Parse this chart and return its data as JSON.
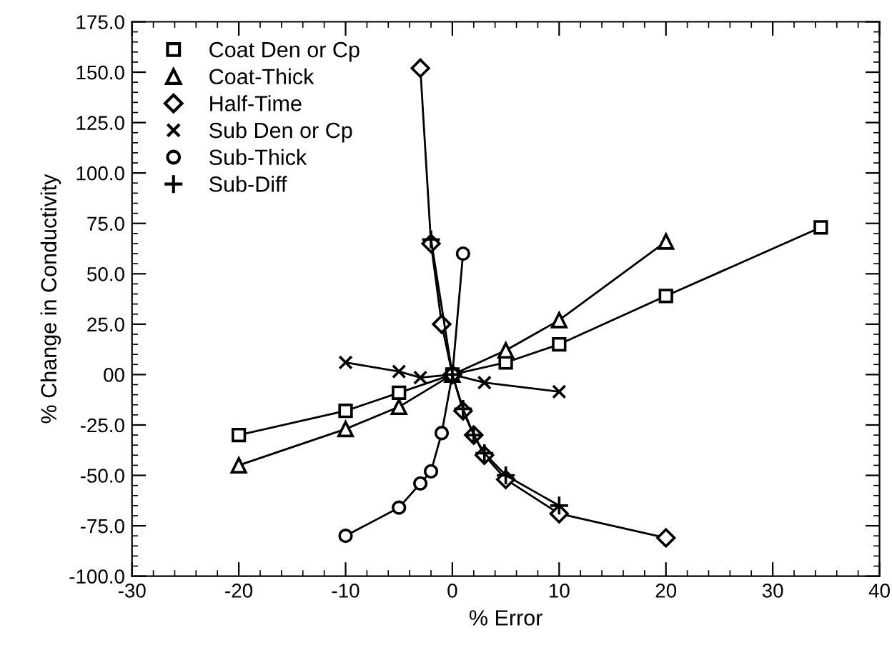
{
  "chart_data": {
    "type": "line",
    "xlabel": "% Error",
    "ylabel": "% Change in Conductivity",
    "xlim": [
      -30,
      40
    ],
    "xticks": [
      -30,
      -20,
      -10,
      0,
      10,
      20,
      30,
      40
    ],
    "ylim": [
      -100,
      175
    ],
    "yticks": [
      {
        "value": -100,
        "label": "-100.0"
      },
      {
        "value": -75,
        "label": "-75.0"
      },
      {
        "value": -50,
        "label": "-50.0"
      },
      {
        "value": -25,
        "label": "-25.0"
      },
      {
        "value": 0,
        "label": "00"
      },
      {
        "value": 25,
        "label": "25.0"
      },
      {
        "value": 50,
        "label": "50.0"
      },
      {
        "value": 75,
        "label": "75.0"
      },
      {
        "value": 100,
        "label": "100.0"
      },
      {
        "value": 125,
        "label": "125.0"
      },
      {
        "value": 150,
        "label": "150.0"
      },
      {
        "value": 175,
        "label": "175.0"
      }
    ],
    "grid": false,
    "legend": "top left",
    "line_style": "solid",
    "series": [
      {
        "name": "Coat Den or Cp",
        "color": "#000000",
        "marker": "square",
        "x": [
          -20,
          -10,
          -5,
          0,
          5,
          10,
          20,
          34.5
        ],
        "values": [
          -30,
          -18,
          -9,
          0,
          6,
          15,
          39,
          73
        ]
      },
      {
        "name": "Coat-Thick",
        "color": "#000000",
        "marker": "triangle",
        "x": [
          -20,
          -10,
          -5,
          0,
          5,
          10,
          20
        ],
        "values": [
          -45,
          -27,
          -16,
          0,
          12,
          27,
          66
        ]
      },
      {
        "name": "Half-Time",
        "color": "#000000",
        "marker": "diamond",
        "x": [
          -3,
          -2,
          -1,
          0,
          1,
          2,
          3,
          5,
          10,
          20
        ],
        "values": [
          152,
          65,
          25,
          0,
          -18,
          -30,
          -40,
          -52,
          -69,
          -81
        ]
      },
      {
        "name": "Sub Den or Cp",
        "color": "#000000",
        "marker": "cross",
        "x": [
          -10,
          -5,
          -3,
          0,
          3,
          10
        ],
        "values": [
          6,
          1.5,
          -1.5,
          0,
          -4,
          -8.5
        ]
      },
      {
        "name": "Sub-Thick",
        "color": "#000000",
        "marker": "circle",
        "x": [
          -10,
          -5,
          -3,
          -2,
          -1,
          0,
          1
        ],
        "values": [
          -80,
          -66,
          -54,
          -48,
          -29,
          0,
          60
        ]
      },
      {
        "name": "Sub-Diff",
        "color": "#000000",
        "marker": "plus",
        "x": [
          -2,
          0,
          1,
          2,
          3,
          5,
          10
        ],
        "values": [
          67,
          0,
          -17,
          -30,
          -39,
          -50,
          -65
        ]
      }
    ]
  }
}
